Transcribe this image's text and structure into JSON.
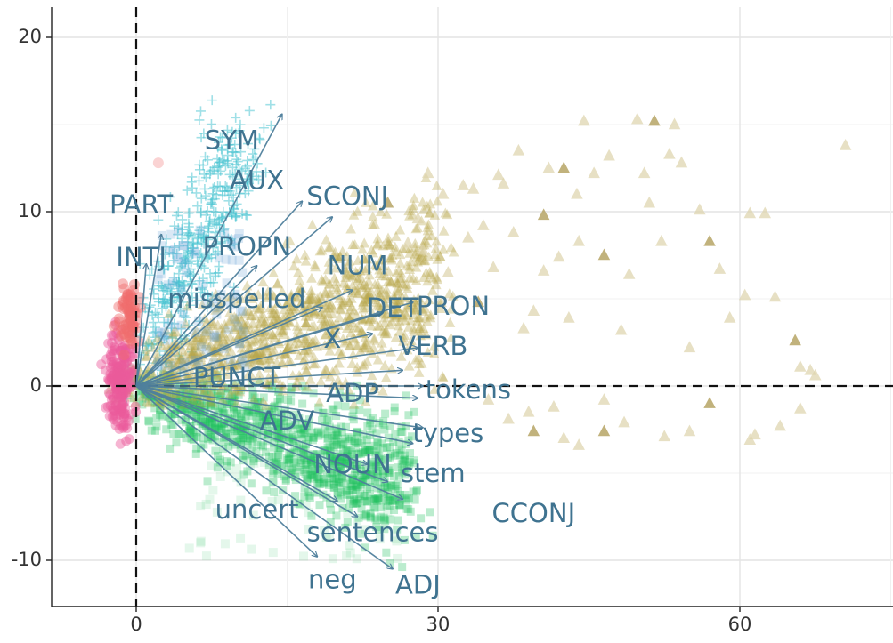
{
  "chart_data": {
    "type": "scatter",
    "title": "",
    "xlabel": "",
    "ylabel": "",
    "xlim": [
      -8.5,
      75
    ],
    "ylim": [
      -12.5,
      21.5
    ],
    "x_ticks": [
      0,
      30,
      60
    ],
    "y_ticks": [
      -10,
      0,
      10,
      20
    ],
    "x_tick_labels": [
      "0",
      "30",
      "60"
    ],
    "y_tick_labels": [
      "-10",
      "0",
      "10",
      "20"
    ],
    "grid": true,
    "reference_lines": {
      "x": 0,
      "y": 0,
      "style": "dashed"
    },
    "colors": {
      "arrow": "#4f7f9c",
      "arrow_label": "#3f7390",
      "green": "#1dbf5e",
      "olive": "#b8a54a",
      "teal": "#41c1cf",
      "pink": "#ea5c9c",
      "red": "#f06d6d",
      "blue": "#6aa2d6",
      "faint_triangle": "#ddd3ab",
      "faint_triangle_dark": "#b6a565"
    },
    "point_clouds": [
      {
        "group": "green-squares",
        "color": "green",
        "shape": "square"
      },
      {
        "group": "olive-triangles",
        "color": "olive",
        "shape": "triangle"
      },
      {
        "group": "teal-crosses",
        "color": "teal",
        "shape": "cross"
      },
      {
        "group": "pink-circles",
        "color": "pink",
        "shape": "circle"
      },
      {
        "group": "red-circles",
        "color": "red",
        "shape": "circle"
      }
    ],
    "sparse_triangles": [
      [
        25,
        10.5
      ],
      [
        27,
        8.2
      ],
      [
        28.5,
        7.8
      ],
      [
        31,
        6.5
      ],
      [
        32.5,
        11.5
      ],
      [
        33,
        8.5
      ],
      [
        33.5,
        11.3
      ],
      [
        34,
        4.8
      ],
      [
        34.5,
        9.2
      ],
      [
        35.5,
        6.8
      ],
      [
        36.5,
        11.6
      ],
      [
        37.5,
        8.8
      ],
      [
        38.5,
        3.3
      ],
      [
        39.5,
        4.3
      ],
      [
        40.5,
        9.8
      ],
      [
        41,
        12.5
      ],
      [
        42,
        7.4
      ],
      [
        43,
        3.9
      ],
      [
        44,
        8.3
      ],
      [
        44.5,
        15.2
      ],
      [
        45.5,
        12.2
      ],
      [
        46.5,
        7.5
      ],
      [
        47,
        13.2
      ],
      [
        48.2,
        3.2
      ],
      [
        49,
        6.4
      ],
      [
        49.8,
        15.3
      ],
      [
        50.5,
        12.2
      ],
      [
        51,
        10.5
      ],
      [
        51.5,
        15.2
      ],
      [
        52.2,
        8.3
      ],
      [
        53,
        13.3
      ],
      [
        53.5,
        15.0
      ],
      [
        54.2,
        12.8
      ],
      [
        55,
        2.2
      ],
      [
        56,
        10.1
      ],
      [
        57,
        8.3
      ],
      [
        58,
        6.7
      ],
      [
        59,
        3.9
      ],
      [
        60.5,
        5.2
      ],
      [
        61,
        9.9
      ],
      [
        62.5,
        9.9
      ],
      [
        63.5,
        5.1
      ],
      [
        65.5,
        2.6
      ],
      [
        66,
        1.1
      ],
      [
        67,
        0.9
      ],
      [
        67.5,
        0.6
      ],
      [
        70.5,
        13.8
      ],
      [
        35,
        -0.8
      ],
      [
        37,
        -1.9
      ],
      [
        39.5,
        -2.6
      ],
      [
        41.5,
        -1.2
      ],
      [
        44,
        -3.4
      ],
      [
        46.5,
        -0.8
      ],
      [
        48.5,
        -2.1
      ],
      [
        52.5,
        -2.9
      ],
      [
        55,
        -2.6
      ],
      [
        57,
        -1.0
      ],
      [
        61,
        -3.1
      ],
      [
        64,
        -2.3
      ],
      [
        66,
        -1.3
      ],
      [
        61.5,
        -2.8
      ],
      [
        39,
        -1.5
      ],
      [
        42.5,
        -3.0
      ],
      [
        46.5,
        -2.6
      ],
      [
        38,
        13.5
      ],
      [
        36,
        12.1
      ],
      [
        40.5,
        6.6
      ],
      [
        43.8,
        11.0
      ],
      [
        30.5,
        11.0
      ],
      [
        28,
        9.6
      ],
      [
        42.5,
        12.5
      ],
      [
        29,
        12.2
      ]
    ],
    "loadings": [
      {
        "label": "SYM",
        "x": 14.5,
        "y": 15.6,
        "label_x": 9.5,
        "label_y": 14.0
      },
      {
        "label": "AUX",
        "x": 16.5,
        "y": 10.6,
        "label_x": 12.0,
        "label_y": 11.7
      },
      {
        "label": "PART",
        "x": 2.5,
        "y": 8.7,
        "label_x": 0.5,
        "label_y": 10.3
      },
      {
        "label": "SCONJ",
        "x": 19.5,
        "y": 9.7,
        "label_x": 21.0,
        "label_y": 10.8
      },
      {
        "label": "INTJ",
        "x": 1.0,
        "y": 7.0,
        "label_x": 0.5,
        "label_y": 7.3
      },
      {
        "label": "PROPN",
        "x": 12.0,
        "y": 6.9,
        "label_x": 11.0,
        "label_y": 7.9
      },
      {
        "label": "NUM",
        "x": 21.5,
        "y": 5.5,
        "label_x": 22.0,
        "label_y": 6.8
      },
      {
        "label": "misspelled",
        "x": 18.5,
        "y": 4.5,
        "label_x": 10.0,
        "label_y": 4.9
      },
      {
        "label": "DET",
        "x": 24.5,
        "y": 4.2,
        "label_x": 25.5,
        "label_y": 4.4
      },
      {
        "label": "PRON",
        "x": 27.5,
        "y": 4.8,
        "label_x": 31.5,
        "label_y": 4.5
      },
      {
        "label": "X",
        "x": 23.5,
        "y": 3.0,
        "label_x": 19.5,
        "label_y": 2.6
      },
      {
        "label": "VERB",
        "x": 28.0,
        "y": 2.2,
        "label_x": 29.5,
        "label_y": 2.2
      },
      {
        "label": "PUNCT",
        "x": 26.5,
        "y": 0.9,
        "label_x": 10.0,
        "label_y": 0.4
      },
      {
        "label": "ADP",
        "x": 28.0,
        "y": -0.7,
        "label_x": 21.5,
        "label_y": -0.5
      },
      {
        "label": "tokens",
        "x": 28.5,
        "y": 0.0,
        "label_x": 33.0,
        "label_y": -0.3
      },
      {
        "label": "types",
        "x": 28.5,
        "y": -2.4,
        "label_x": 31.0,
        "label_y": -2.8
      },
      {
        "label": "ADV",
        "x": 23.0,
        "y": -4.5,
        "label_x": 15.0,
        "label_y": -2.1
      },
      {
        "label": "stem",
        "x": 27.5,
        "y": -3.3,
        "label_x": 29.5,
        "label_y": -5.1
      },
      {
        "label": "NOUN",
        "x": 26.5,
        "y": -6.5,
        "label_x": 21.5,
        "label_y": -4.6
      },
      {
        "label": "CCONJ",
        "x": 25.0,
        "y": -5.5,
        "label_x": 39.5,
        "label_y": -7.4
      },
      {
        "label": "uncert",
        "x": 20.0,
        "y": -6.6,
        "label_x": 12.0,
        "label_y": -7.2
      },
      {
        "label": "sentences",
        "x": 22.0,
        "y": -7.5,
        "label_x": 23.5,
        "label_y": -8.5
      },
      {
        "label": "neg",
        "x": 18.0,
        "y": -9.8,
        "label_x": 19.5,
        "label_y": -11.2
      },
      {
        "label": "ADJ",
        "x": 25.5,
        "y": -10.5,
        "label_x": 28.0,
        "label_y": -11.5
      }
    ]
  }
}
